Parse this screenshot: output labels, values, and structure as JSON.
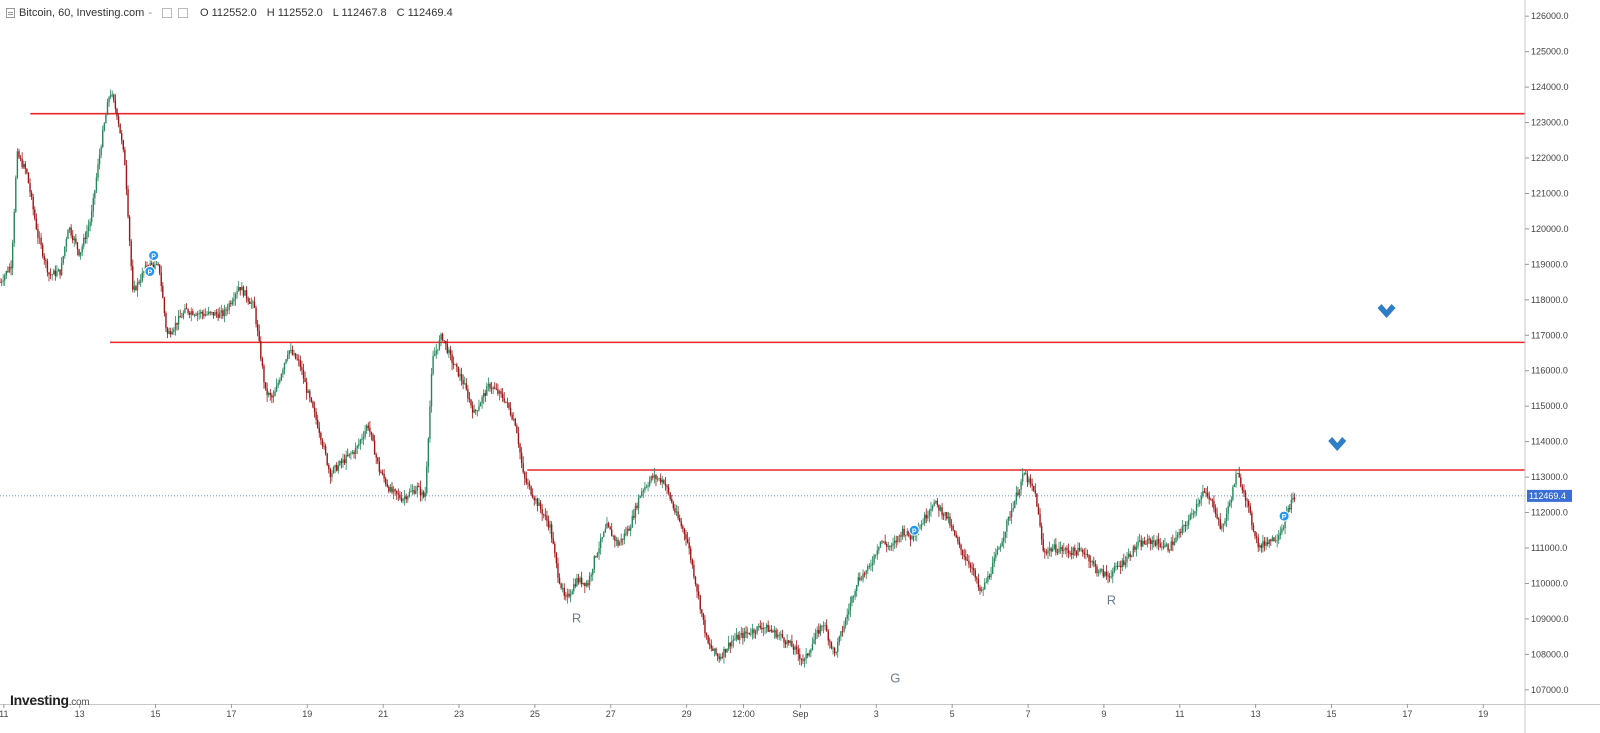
{
  "header": {
    "symbol": "Bitcoin, 60, Investing.com",
    "caret": "-",
    "open": "O 112552.0",
    "high": "H 112552.0",
    "low": "L 112467.8",
    "close": "C 112469.4"
  },
  "logo": {
    "brand": "Investing",
    "suffix": ".com"
  },
  "colors": {
    "up": "#26865b",
    "down": "#a01414",
    "resistance_line": "#e8262b",
    "price_line": "#3a6fd8",
    "arrow": "#2f7cc7",
    "annotation_text": "#6f7c8e",
    "event_marker": "#2196f3"
  },
  "chart_data": {
    "type": "candlestick",
    "instrument": "Bitcoin",
    "interval": "60",
    "ylim": [
      106600,
      126400
    ],
    "y_ticks": [
      "126000.0",
      "125000.0",
      "124000.0",
      "123000.0",
      "122000.0",
      "121000.0",
      "120000.0",
      "119000.0",
      "118000.0",
      "117000.0",
      "116000.0",
      "115000.0",
      "114000.0",
      "113000.0",
      "112000.0",
      "111000.0",
      "110000.0",
      "109000.0",
      "108000.0",
      "107000.0"
    ],
    "x_ticks": [
      "11",
      "13",
      "15",
      "17",
      "19",
      "21",
      "23",
      "25",
      "27",
      "29",
      "12:00",
      "Sep",
      "3",
      "5",
      "7",
      "9",
      "11",
      "13",
      "15",
      "17",
      "19"
    ],
    "x_day_range": [
      10.9,
      19.1
    ],
    "last_price": 112469.4,
    "last_price_label": "112469.4",
    "horizontal_lines": [
      {
        "value": 123250,
        "from_day": 11.7
      },
      {
        "value": 116800,
        "from_day": 13.8
      },
      {
        "value": 113200,
        "from_day": 24.8
      }
    ],
    "price_path": [
      {
        "day": 10.9,
        "price": 118500
      },
      {
        "day": 11.2,
        "price": 119000
      },
      {
        "day": 11.35,
        "price": 122100
      },
      {
        "day": 11.6,
        "price": 121600
      },
      {
        "day": 11.9,
        "price": 119800
      },
      {
        "day": 12.2,
        "price": 118700
      },
      {
        "day": 12.5,
        "price": 118800
      },
      {
        "day": 12.7,
        "price": 120100
      },
      {
        "day": 13.0,
        "price": 119300
      },
      {
        "day": 13.3,
        "price": 120300
      },
      {
        "day": 13.55,
        "price": 122300
      },
      {
        "day": 13.8,
        "price": 123900
      },
      {
        "day": 14.0,
        "price": 123200
      },
      {
        "day": 14.2,
        "price": 121800
      },
      {
        "day": 14.4,
        "price": 118200
      },
      {
        "day": 14.6,
        "price": 118600
      },
      {
        "day": 14.8,
        "price": 119000
      },
      {
        "day": 15.1,
        "price": 118900
      },
      {
        "day": 15.3,
        "price": 117000
      },
      {
        "day": 15.8,
        "price": 117700
      },
      {
        "day": 16.3,
        "price": 117600
      },
      {
        "day": 16.8,
        "price": 117600
      },
      {
        "day": 17.2,
        "price": 118400
      },
      {
        "day": 17.6,
        "price": 117800
      },
      {
        "day": 17.9,
        "price": 115400
      },
      {
        "day": 18.1,
        "price": 115200
      },
      {
        "day": 18.5,
        "price": 116600
      },
      {
        "day": 18.8,
        "price": 116200
      },
      {
        "day": 19.0,
        "price": 115400
      },
      {
        "day": 19.3,
        "price": 114400
      },
      {
        "day": 19.6,
        "price": 113100
      },
      {
        "day": 20.0,
        "price": 113500
      },
      {
        "day": 20.3,
        "price": 113800
      },
      {
        "day": 20.6,
        "price": 114500
      },
      {
        "day": 20.9,
        "price": 113200
      },
      {
        "day": 21.2,
        "price": 112600
      },
      {
        "day": 21.5,
        "price": 112400
      },
      {
        "day": 21.9,
        "price": 112700
      },
      {
        "day": 22.1,
        "price": 112400
      },
      {
        "day": 22.3,
        "price": 116300
      },
      {
        "day": 22.55,
        "price": 117000
      },
      {
        "day": 22.8,
        "price": 116300
      },
      {
        "day": 23.1,
        "price": 115700
      },
      {
        "day": 23.4,
        "price": 114800
      },
      {
        "day": 23.8,
        "price": 115600
      },
      {
        "day": 24.2,
        "price": 115200
      },
      {
        "day": 24.5,
        "price": 114500
      },
      {
        "day": 24.7,
        "price": 113000
      },
      {
        "day": 24.85,
        "price": 112700
      },
      {
        "day": 25.1,
        "price": 112200
      },
      {
        "day": 25.4,
        "price": 111600
      },
      {
        "day": 25.6,
        "price": 110300
      },
      {
        "day": 25.8,
        "price": 109500
      },
      {
        "day": 26.1,
        "price": 110100
      },
      {
        "day": 26.4,
        "price": 110000
      },
      {
        "day": 26.6,
        "price": 110800
      },
      {
        "day": 26.9,
        "price": 111600
      },
      {
        "day": 27.2,
        "price": 111100
      },
      {
        "day": 27.5,
        "price": 111600
      },
      {
        "day": 27.8,
        "price": 112600
      },
      {
        "day": 28.1,
        "price": 113000
      },
      {
        "day": 28.4,
        "price": 112900
      },
      {
        "day": 28.7,
        "price": 112000
      },
      {
        "day": 29.0,
        "price": 111300
      },
      {
        "day": 29.3,
        "price": 109700
      },
      {
        "day": 29.55,
        "price": 108300
      },
      {
        "day": 29.85,
        "price": 107900
      },
      {
        "day": 30.2,
        "price": 108400
      },
      {
        "day": 30.6,
        "price": 108600
      },
      {
        "day": 31.0,
        "price": 108800
      },
      {
        "day": 31.5,
        "price": 108500
      },
      {
        "day": 31.8,
        "price": 108200
      },
      {
        "day": 32.1,
        "price": 107800
      },
      {
        "day": 32.35,
        "price": 108400
      },
      {
        "day": 32.6,
        "price": 108900
      },
      {
        "day": 32.9,
        "price": 108000
      },
      {
        "day": 33.2,
        "price": 109000
      },
      {
        "day": 33.5,
        "price": 110100
      },
      {
        "day": 33.8,
        "price": 110400
      },
      {
        "day": 34.1,
        "price": 111200
      },
      {
        "day": 34.4,
        "price": 111000
      },
      {
        "day": 34.7,
        "price": 111500
      },
      {
        "day": 34.9,
        "price": 111300
      },
      {
        "day": 35.2,
        "price": 111700
      },
      {
        "day": 35.5,
        "price": 112300
      },
      {
        "day": 35.85,
        "price": 111900
      },
      {
        "day": 36.2,
        "price": 111000
      },
      {
        "day": 36.5,
        "price": 110500
      },
      {
        "day": 36.75,
        "price": 109700
      },
      {
        "day": 37.0,
        "price": 110300
      },
      {
        "day": 37.3,
        "price": 111200
      },
      {
        "day": 37.6,
        "price": 112200
      },
      {
        "day": 37.9,
        "price": 113100
      },
      {
        "day": 38.2,
        "price": 112500
      },
      {
        "day": 38.4,
        "price": 110900
      },
      {
        "day": 38.7,
        "price": 111000
      },
      {
        "day": 39.1,
        "price": 110900
      },
      {
        "day": 39.5,
        "price": 110900
      },
      {
        "day": 39.8,
        "price": 110400
      },
      {
        "day": 40.1,
        "price": 110200
      },
      {
        "day": 40.5,
        "price": 110600
      },
      {
        "day": 40.9,
        "price": 111100
      },
      {
        "day": 41.3,
        "price": 111200
      },
      {
        "day": 41.7,
        "price": 111000
      },
      {
        "day": 42.0,
        "price": 111400
      },
      {
        "day": 42.3,
        "price": 111900
      },
      {
        "day": 42.6,
        "price": 112600
      },
      {
        "day": 42.9,
        "price": 112200
      },
      {
        "day": 43.1,
        "price": 111500
      },
      {
        "day": 43.3,
        "price": 112200
      },
      {
        "day": 43.5,
        "price": 113100
      },
      {
        "day": 43.7,
        "price": 112600
      },
      {
        "day": 43.9,
        "price": 111700
      },
      {
        "day": 44.1,
        "price": 111000
      },
      {
        "day": 44.3,
        "price": 111200
      },
      {
        "day": 44.55,
        "price": 111300
      },
      {
        "day": 44.75,
        "price": 111700
      },
      {
        "day": 44.9,
        "price": 112200
      },
      {
        "day": 45.05,
        "price": 112469
      }
    ],
    "annotations": [
      {
        "text": "R",
        "day": 26.1,
        "price": 108900
      },
      {
        "text": "G",
        "day": 34.5,
        "price": 107200
      },
      {
        "text": "R",
        "day": 40.2,
        "price": 109400
      }
    ],
    "arrows": [
      {
        "direction": "down",
        "day": 46.15,
        "price": 113850
      },
      {
        "direction": "down",
        "day": 47.45,
        "price": 117600
      }
    ],
    "event_markers": [
      {
        "label": "P",
        "day": 14.95,
        "price": 119250
      },
      {
        "label": "P",
        "day": 14.85,
        "price": 118800
      },
      {
        "label": "P",
        "day": 35.0,
        "price": 111500
      },
      {
        "label": "P",
        "day": 44.75,
        "price": 111900
      }
    ]
  }
}
